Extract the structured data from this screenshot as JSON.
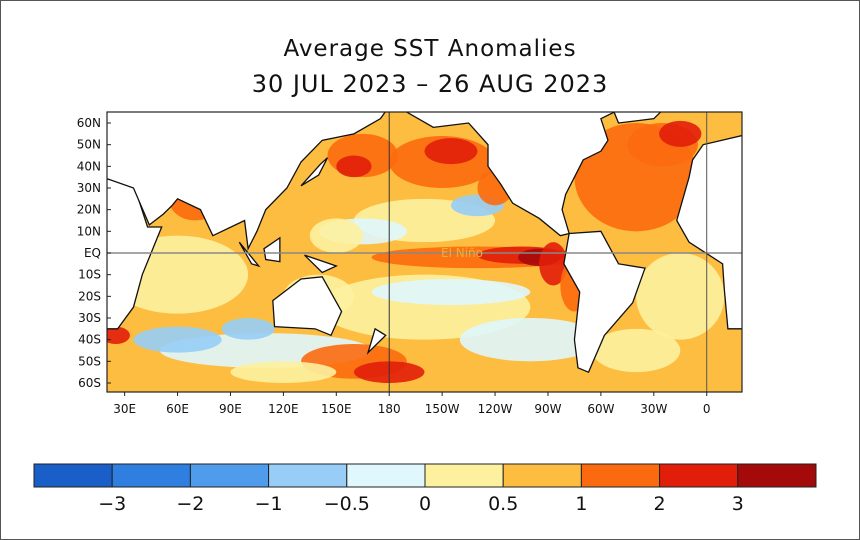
{
  "chart_data": {
    "type": "heatmap",
    "title": "Average SST Anomalies",
    "subtitle": "30 JUL 2023 – 26 AUG 2023",
    "lat_ticks": [
      "60N",
      "50N",
      "40N",
      "30N",
      "20N",
      "10N",
      "EQ",
      "10S",
      "20S",
      "30S",
      "40S",
      "50S",
      "60S"
    ],
    "lon_ticks": [
      "30E",
      "60E",
      "90E",
      "120E",
      "150E",
      "180",
      "150W",
      "120W",
      "90W",
      "60W",
      "30W",
      "0"
    ],
    "annotation": "El Niño",
    "colorbar": {
      "tick_labels": [
        "−3",
        "−2",
        "−1",
        "−0.5",
        "0",
        "0.5",
        "1",
        "2",
        "3"
      ],
      "colors": [
        "#1a5fc8",
        "#2f7fe0",
        "#4e9ceb",
        "#97cdf7",
        "#dff7fd",
        "#fdf1a0",
        "#fdbd40",
        "#fc6a10",
        "#e11e0a",
        "#a50a0a"
      ]
    },
    "land_color": "#ffffff"
  }
}
